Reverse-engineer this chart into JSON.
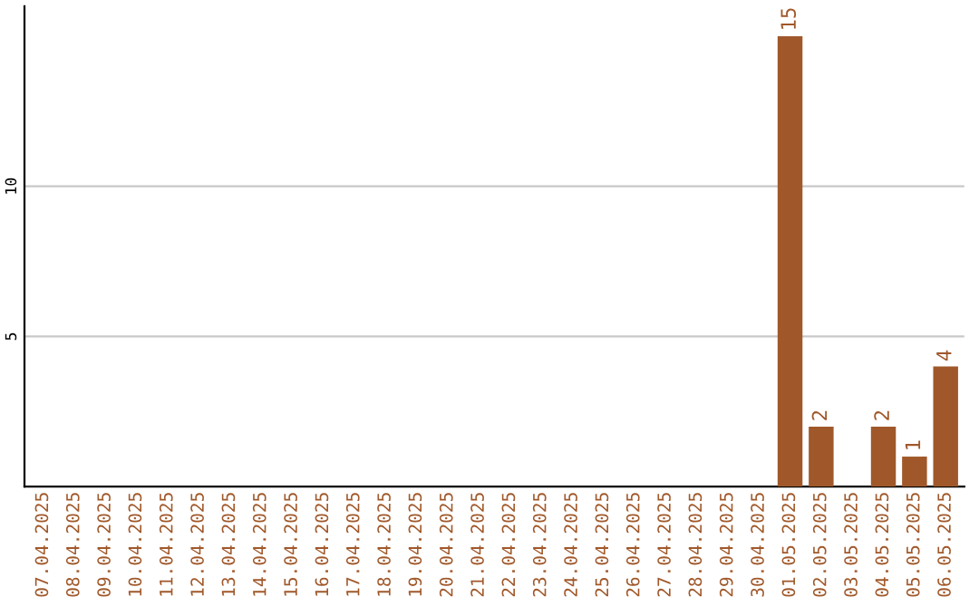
{
  "chart_data": {
    "type": "bar",
    "categories": [
      "07.04.2025",
      "08.04.2025",
      "09.04.2025",
      "10.04.2025",
      "11.04.2025",
      "12.04.2025",
      "13.04.2025",
      "14.04.2025",
      "15.04.2025",
      "16.04.2025",
      "17.04.2025",
      "18.04.2025",
      "19.04.2025",
      "20.04.2025",
      "21.04.2025",
      "22.04.2025",
      "23.04.2025",
      "24.04.2025",
      "25.04.2025",
      "26.04.2025",
      "27.04.2025",
      "28.04.2025",
      "29.04.2025",
      "30.04.2025",
      "01.05.2025",
      "02.05.2025",
      "03.05.2025",
      "04.05.2025",
      "05.05.2025",
      "06.05.2025"
    ],
    "values": [
      0,
      0,
      0,
      0,
      0,
      0,
      0,
      0,
      0,
      0,
      0,
      0,
      0,
      0,
      0,
      0,
      0,
      0,
      0,
      0,
      0,
      0,
      0,
      0,
      15,
      2,
      0,
      2,
      1,
      4
    ],
    "value_labels": [
      null,
      null,
      null,
      null,
      null,
      null,
      null,
      null,
      null,
      null,
      null,
      null,
      null,
      null,
      null,
      null,
      null,
      null,
      null,
      null,
      null,
      null,
      null,
      null,
      "15",
      "2",
      null,
      "2",
      "1",
      "4"
    ],
    "color": "#a0582a",
    "ylim": [
      0,
      16
    ],
    "yticks": [
      5,
      10
    ],
    "grid": "y"
  }
}
